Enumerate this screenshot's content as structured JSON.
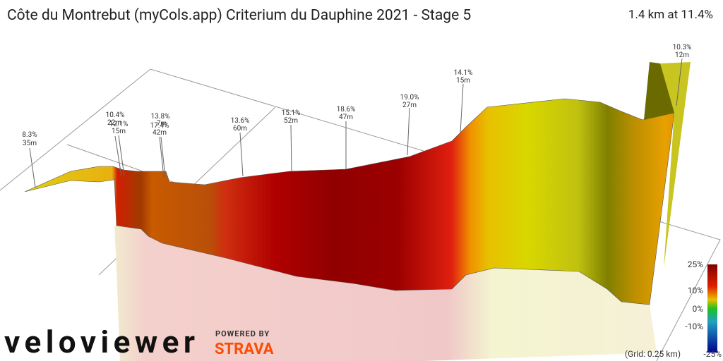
{
  "header": {
    "title": "Côte du Montrebut (myCols.app) Criterium du Dauphine 2021 - Stage 5",
    "summary": "1.4 km at 11.4%"
  },
  "annotations": [
    {
      "grade": "8.3%",
      "length": "35m"
    },
    {
      "grade": "10.4%",
      "length": "22m"
    },
    {
      "grade": "12.1%",
      "length": "15m"
    },
    {
      "grade": "13.8%",
      "length": "7m"
    },
    {
      "grade": "17.4%",
      "length": "42m"
    },
    {
      "grade": "13.6%",
      "length": "60m"
    },
    {
      "grade": "15.1%",
      "length": "52m"
    },
    {
      "grade": "18.6%",
      "length": "47m"
    },
    {
      "grade": "19.0%",
      "length": "27m"
    },
    {
      "grade": "14.1%",
      "length": "15m"
    },
    {
      "grade": "10.3%",
      "length": "12m"
    }
  ],
  "legend": {
    "ticks": [
      "25%",
      "10%",
      "0%",
      "-10%",
      "-25%"
    ],
    "grid_note": "(Grid: 0.25 km)"
  },
  "branding": {
    "logo": "veloviewer",
    "powered": "POWERED BY",
    "partner": "STRAVA"
  }
}
